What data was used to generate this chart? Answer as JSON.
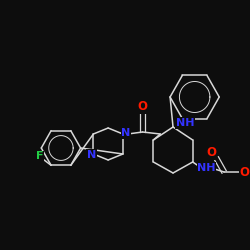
{
  "background_color": "#0d0d0d",
  "bond_color": "#d8d8d8",
  "atom_colors": {
    "N": "#3333ff",
    "O": "#ff1a00",
    "F": "#22cc44",
    "C": "#d8d8d8"
  },
  "figsize": [
    2.5,
    2.5
  ],
  "dpi": 100
}
